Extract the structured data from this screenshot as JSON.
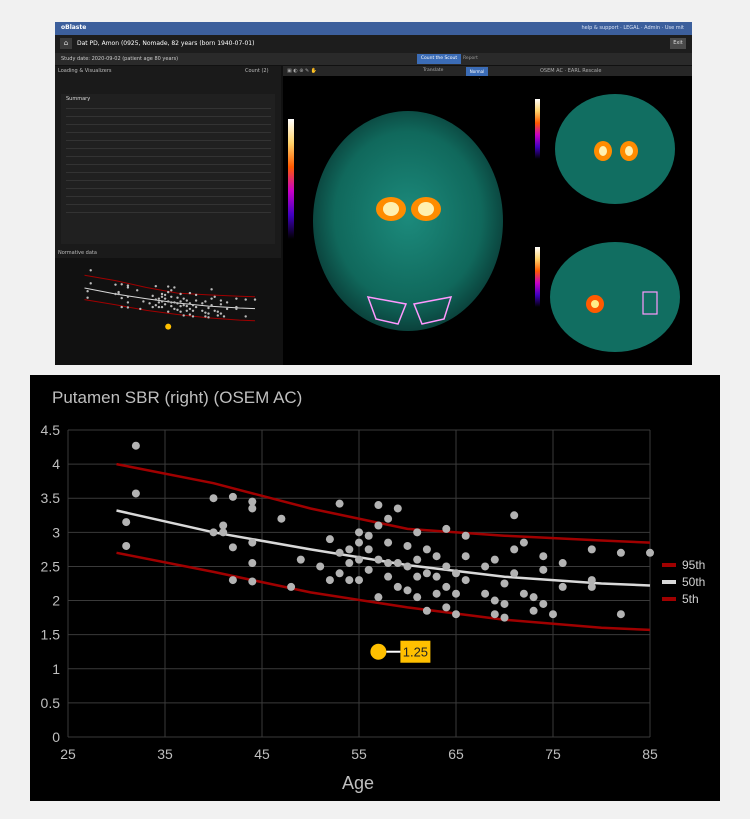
{
  "app": {
    "brand": "oBlaste",
    "top_links": "help & support · LEGAL · Admin · Use mit",
    "patient_line": "Dat PD, Amon (0925, Nomade, 82 years (born 1940-07-01)",
    "exit_label": "Exit",
    "study_line": "Study date: 2020-09-02 (patient age 80 years)",
    "tabs": [
      "Count the Scout",
      "Report"
    ],
    "left_header": "Loading & Visualizers",
    "left_header_right": "Count (2)",
    "panel_title": "Summary",
    "normal_header": "Normative data",
    "toolbar_left": "Translate",
    "toolbar_btn": "Normal scale",
    "toolbar_right": "OSEM AC · EARL Rescale"
  },
  "colors": {
    "background": "#000000",
    "grid": "#3a3a3a",
    "points": "#b3b3b3",
    "band": "#a00000",
    "median": "#d9d9d9",
    "patient": "#ffc000"
  },
  "chart_data": {
    "type": "scatter",
    "title": "Putamen SBR (right) (OSEM AC)",
    "xlabel": "Age",
    "ylabel": "",
    "xlim": [
      25,
      85
    ],
    "ylim": [
      0,
      4.5
    ],
    "xticks": [
      25,
      35,
      45,
      55,
      65,
      75,
      85
    ],
    "yticks": [
      0,
      0.5,
      1,
      1.5,
      2,
      2.5,
      3,
      3.5,
      4,
      4.5
    ],
    "grid": true,
    "legend_position": "right",
    "legend": [
      "95th",
      "50th",
      "5th"
    ],
    "series": [
      {
        "name": "95th",
        "kind": "line",
        "x": [
          30,
          40,
          50,
          60,
          70,
          80,
          85
        ],
        "y": [
          4.0,
          3.72,
          3.35,
          3.05,
          2.95,
          2.88,
          2.85
        ]
      },
      {
        "name": "50th",
        "kind": "line",
        "x": [
          30,
          40,
          50,
          60,
          70,
          80,
          85
        ],
        "y": [
          3.32,
          3.0,
          2.75,
          2.52,
          2.35,
          2.25,
          2.22
        ]
      },
      {
        "name": "5th",
        "kind": "line",
        "x": [
          30,
          40,
          50,
          60,
          70,
          80,
          85
        ],
        "y": [
          2.7,
          2.42,
          2.12,
          1.9,
          1.72,
          1.6,
          1.57
        ]
      },
      {
        "name": "",
        "kind": "points",
        "points": [
          [
            31,
            3.15
          ],
          [
            31,
            2.8
          ],
          [
            32,
            4.27
          ],
          [
            32,
            3.57
          ],
          [
            40,
            3.5
          ],
          [
            40,
            3.0
          ],
          [
            41,
            3.1
          ],
          [
            41,
            3.0
          ],
          [
            42,
            3.52
          ],
          [
            42,
            2.78
          ],
          [
            42,
            2.3
          ],
          [
            44,
            3.45
          ],
          [
            44,
            3.35
          ],
          [
            44,
            2.85
          ],
          [
            44,
            2.55
          ],
          [
            44,
            2.28
          ],
          [
            47,
            3.2
          ],
          [
            48,
            2.2
          ],
          [
            49,
            2.6
          ],
          [
            51,
            2.5
          ],
          [
            52,
            2.3
          ],
          [
            52,
            2.9
          ],
          [
            53,
            3.42
          ],
          [
            53,
            2.7
          ],
          [
            53,
            2.4
          ],
          [
            54,
            2.75
          ],
          [
            54,
            2.55
          ],
          [
            54,
            2.3
          ],
          [
            55,
            3.0
          ],
          [
            55,
            2.85
          ],
          [
            55,
            2.3
          ],
          [
            55,
            2.6
          ],
          [
            56,
            2.95
          ],
          [
            56,
            2.75
          ],
          [
            56,
            2.45
          ],
          [
            57,
            3.4
          ],
          [
            57,
            3.1
          ],
          [
            57,
            2.6
          ],
          [
            57,
            2.05
          ],
          [
            58,
            3.2
          ],
          [
            58,
            2.85
          ],
          [
            58,
            2.55
          ],
          [
            58,
            2.35
          ],
          [
            59,
            3.35
          ],
          [
            59,
            2.55
          ],
          [
            59,
            2.2
          ],
          [
            60,
            2.8
          ],
          [
            60,
            2.5
          ],
          [
            60,
            2.15
          ],
          [
            61,
            3.0
          ],
          [
            61,
            2.6
          ],
          [
            61,
            2.35
          ],
          [
            61,
            2.05
          ],
          [
            62,
            2.75
          ],
          [
            62,
            2.4
          ],
          [
            62,
            1.85
          ],
          [
            63,
            2.65
          ],
          [
            63,
            2.35
          ],
          [
            63,
            2.1
          ],
          [
            64,
            3.05
          ],
          [
            64,
            2.5
          ],
          [
            64,
            2.2
          ],
          [
            64,
            1.9
          ],
          [
            65,
            2.4
          ],
          [
            65,
            2.1
          ],
          [
            65,
            1.8
          ],
          [
            66,
            2.95
          ],
          [
            66,
            2.65
          ],
          [
            66,
            2.3
          ],
          [
            68,
            2.5
          ],
          [
            68,
            2.1
          ],
          [
            69,
            2.6
          ],
          [
            69,
            2.0
          ],
          [
            69,
            1.8
          ],
          [
            70,
            2.25
          ],
          [
            70,
            1.95
          ],
          [
            70,
            1.75
          ],
          [
            71,
            3.25
          ],
          [
            71,
            2.75
          ],
          [
            71,
            2.4
          ],
          [
            72,
            2.85
          ],
          [
            72,
            2.1
          ],
          [
            73,
            2.05
          ],
          [
            73,
            1.85
          ],
          [
            74,
            2.65
          ],
          [
            74,
            2.45
          ],
          [
            74,
            1.95
          ],
          [
            75,
            1.8
          ],
          [
            76,
            2.55
          ],
          [
            76,
            2.2
          ],
          [
            79,
            2.75
          ],
          [
            79,
            2.3
          ],
          [
            79,
            2.2
          ],
          [
            82,
            2.7
          ],
          [
            82,
            1.8
          ],
          [
            85,
            2.7
          ]
        ]
      },
      {
        "name": "patient",
        "kind": "marker",
        "x": 57,
        "y": 1.25,
        "label": "1.25"
      }
    ]
  }
}
